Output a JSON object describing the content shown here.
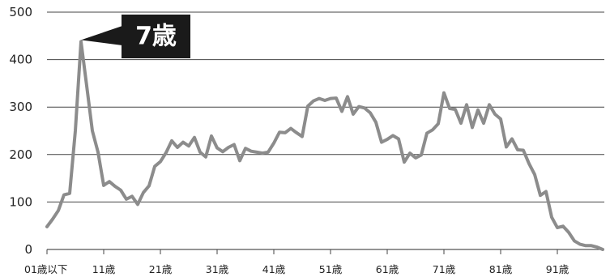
{
  "chart_data": {
    "type": "line",
    "y_ticks": [
      "500",
      "400",
      "300",
      "200",
      "100",
      "0"
    ],
    "ylim": [
      0,
      500
    ],
    "grid": true,
    "x_tick_labels": [
      "01歳以下",
      "11歳",
      "21歳",
      "31歳",
      "41歳",
      "51歳",
      "61歳",
      "71歳",
      "81歳",
      "91歳"
    ],
    "x": [
      1,
      2,
      3,
      4,
      5,
      6,
      7,
      8,
      9,
      10,
      11,
      12,
      13,
      14,
      15,
      16,
      17,
      18,
      19,
      20,
      21,
      22,
      23,
      24,
      25,
      26,
      27,
      28,
      29,
      30,
      31,
      32,
      33,
      34,
      35,
      36,
      37,
      38,
      39,
      40,
      41,
      42,
      43,
      44,
      45,
      46,
      47,
      48,
      49,
      50,
      51,
      52,
      53,
      54,
      55,
      56,
      57,
      58,
      59,
      60,
      61,
      62,
      63,
      64,
      65,
      66,
      67,
      68,
      69,
      70,
      71,
      72,
      73,
      74,
      75,
      76,
      77,
      78,
      79,
      80,
      81,
      82,
      83,
      84,
      85,
      86,
      87,
      88,
      89,
      90,
      91,
      92,
      93,
      94,
      95,
      96,
      97,
      98,
      99
    ],
    "series": [
      {
        "color": "#8c8c8c",
        "values": [
          48,
          64,
          82,
          115,
          118,
          250,
          438,
          345,
          250,
          205,
          135,
          143,
          133,
          125,
          106,
          112,
          95,
          120,
          134,
          175,
          185,
          204,
          229,
          215,
          226,
          218,
          236,
          205,
          195,
          239,
          214,
          206,
          215,
          221,
          187,
          213,
          207,
          205,
          203,
          205,
          224,
          247,
          246,
          255,
          246,
          238,
          302,
          313,
          318,
          314,
          318,
          319,
          291,
          322,
          285,
          301,
          298,
          288,
          268,
          226,
          232,
          240,
          233,
          184,
          203,
          193,
          199,
          245,
          252,
          265,
          330,
          297,
          295,
          266,
          305,
          257,
          294,
          266,
          305,
          285,
          275,
          216,
          233,
          210,
          209,
          181,
          158,
          114,
          122,
          68,
          46,
          49,
          36,
          18,
          11,
          8,
          8,
          5,
          0
        ]
      }
    ],
    "annotation": {
      "text": "7歳",
      "x": 7,
      "y": 438
    }
  }
}
